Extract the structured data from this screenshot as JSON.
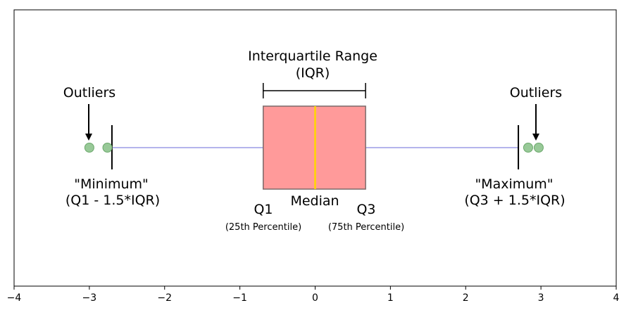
{
  "labels": {
    "iqr_title": "Interquartile Range",
    "iqr_abbrev": "(IQR)",
    "outliers_left": "Outliers",
    "outliers_right": "Outliers",
    "minimum": "\"Minimum\"",
    "minimum_formula": "(Q1 - 1.5*IQR)",
    "maximum": "\"Maximum\"",
    "maximum_formula": "(Q3 + 1.5*IQR)",
    "q1": "Q1",
    "q1_desc": "(25th Percentile)",
    "median": "Median",
    "q3": "Q3",
    "q3_desc": "(75th Percentile)"
  },
  "chart_data": {
    "type": "boxplot",
    "xlim": [
      -4,
      4
    ],
    "x_ticks": [
      -4,
      -3,
      -2,
      -1,
      0,
      1,
      2,
      3,
      4
    ],
    "x_tick_labels": [
      "−4",
      "−3",
      "−2",
      "−1",
      "0",
      "1",
      "2",
      "3",
      "4"
    ],
    "q1": -0.69,
    "median": 0,
    "q3": 0.67,
    "whisker_low": -2.7,
    "whisker_high": 2.7,
    "outliers": [
      -3.0,
      -2.76,
      2.83,
      2.97
    ],
    "grid": false,
    "colors": {
      "box_fill": "#ff9a9a",
      "box_edge": "#7a6a6a",
      "median": "#ffd700",
      "whisker": "#9b9be6",
      "outlier_fill": "#98c998",
      "outlier_edge": "#6aa86a"
    }
  }
}
